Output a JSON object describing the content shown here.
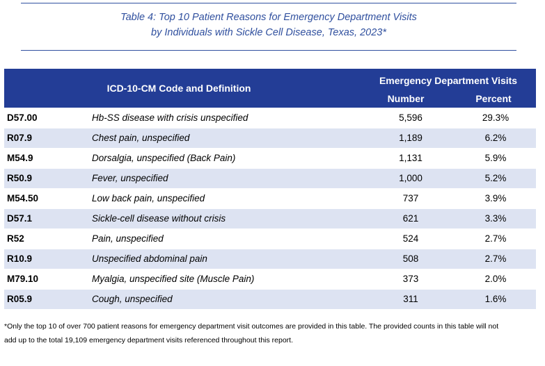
{
  "title": {
    "line1": "Table 4: Top 10 Patient Reasons for Emergency Department Visits",
    "line2": "by Individuals with Sickle Cell Disease, Texas, 2023*"
  },
  "header": {
    "code_definition": "ICD-10-CM Code and Definition",
    "group": "Emergency Department Visits",
    "number": "Number",
    "percent": "Percent"
  },
  "colors": {
    "header_bg": "#233d96",
    "title_text": "#2f4f9e",
    "band_row": "#dde3f2"
  },
  "rows": [
    {
      "code": "D57.00",
      "definition": "Hb-SS disease with crisis unspecified",
      "number": "5,596",
      "percent": "29.3%"
    },
    {
      "code": "R07.9",
      "definition": "Chest pain, unspecified",
      "number": "1,189",
      "percent": "6.2%"
    },
    {
      "code": "M54.9",
      "definition": "Dorsalgia, unspecified (Back Pain)",
      "number": "1,131",
      "percent": "5.9%"
    },
    {
      "code": "R50.9",
      "definition": "Fever, unspecified",
      "number": "1,000",
      "percent": "5.2%"
    },
    {
      "code": "M54.50",
      "definition": "Low back pain, unspecified",
      "number": "737",
      "percent": "3.9%"
    },
    {
      "code": "D57.1",
      "definition": "Sickle-cell disease without crisis",
      "number": "621",
      "percent": "3.3%"
    },
    {
      "code": "R52",
      "definition": "Pain, unspecified",
      "number": "524",
      "percent": "2.7%"
    },
    {
      "code": "R10.9",
      "definition": "Unspecified abdominal pain",
      "number": "508",
      "percent": "2.7%"
    },
    {
      "code": "M79.10",
      "definition": "Myalgia, unspecified site (Muscle Pain)",
      "number": "373",
      "percent": "2.0%"
    },
    {
      "code": "R05.9",
      "definition": "Cough, unspecified",
      "number": "311",
      "percent": "1.6%"
    }
  ],
  "footnote": {
    "line1": "*Only the top 10 of over 700 patient reasons for emergency department visit outcomes are provided in this table. The provided counts in this table will not",
    "line2": "add up to the total 19,109 emergency department visits referenced throughout this report."
  }
}
